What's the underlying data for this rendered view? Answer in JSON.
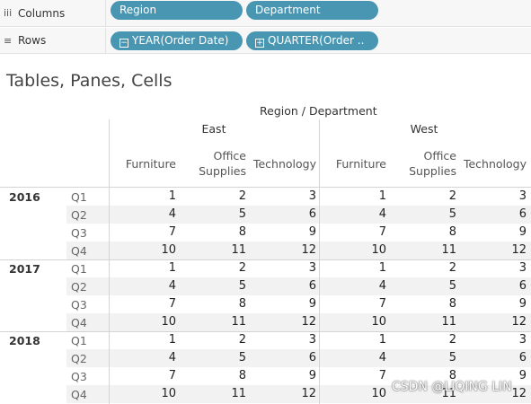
{
  "shelves": {
    "columns": {
      "label": "Columns",
      "icon": "≡",
      "pills": [
        "Region",
        "Department"
      ]
    },
    "rows": {
      "label": "Rows",
      "icon": "≡",
      "pills": [
        {
          "sign": "⊟",
          "text": "YEAR(Order Date)"
        },
        {
          "sign": "⊞",
          "text": "QUARTER(Order .."
        }
      ]
    }
  },
  "viz": {
    "title": "Tables, Panes, Cells",
    "col_header_title": "Region / Department",
    "regions": [
      "East",
      "West"
    ],
    "departments": [
      [
        "Furniture"
      ],
      [
        "Office",
        "Supplies"
      ],
      [
        "Technology"
      ]
    ],
    "years": [
      "2016",
      "2017",
      "2018"
    ],
    "quarters": [
      "Q1",
      "Q2",
      "Q3",
      "Q4"
    ],
    "values": [
      [
        1,
        2,
        3,
        1,
        2,
        3
      ],
      [
        4,
        5,
        6,
        4,
        5,
        6
      ],
      [
        7,
        8,
        9,
        7,
        8,
        9
      ],
      [
        10,
        11,
        12,
        10,
        11,
        12
      ]
    ]
  },
  "watermark": "CSDN @LIQING LIN"
}
